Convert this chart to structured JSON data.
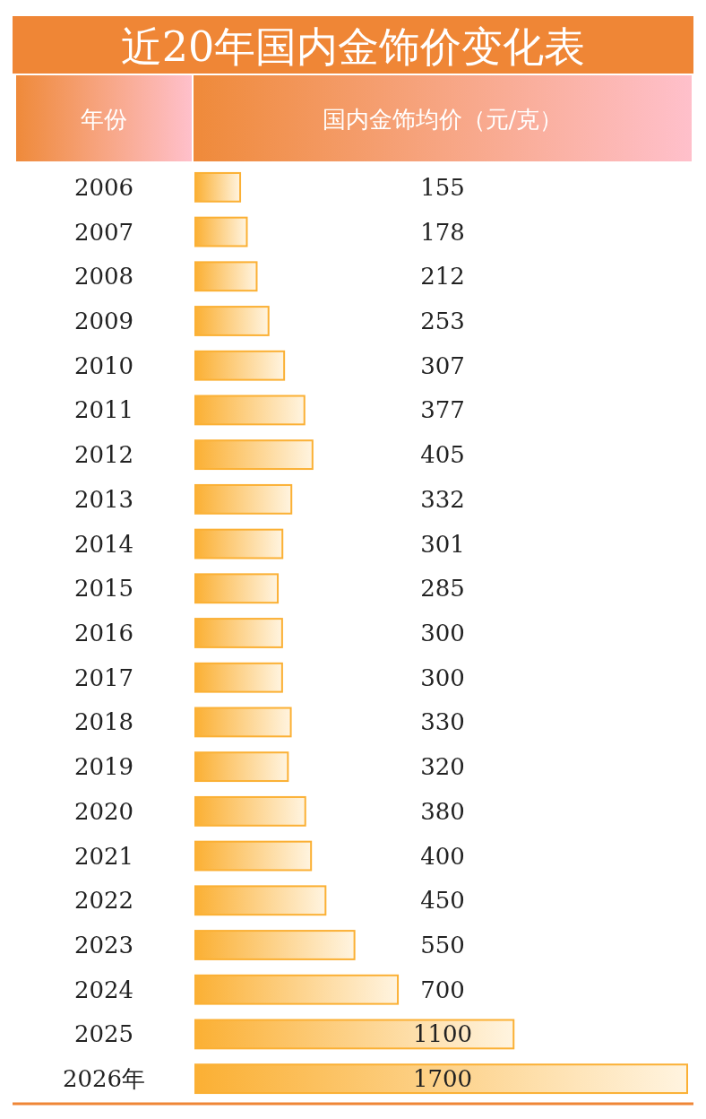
{
  "chart_data": {
    "type": "bar",
    "orientation": "horizontal",
    "title": "近20年国内金饰价变化表",
    "ylabel": "年份",
    "xlabel": "国内金饰均价（元/克）",
    "categories": [
      "2006",
      "2007",
      "2008",
      "2009",
      "2010",
      "2011",
      "2012",
      "2013",
      "2014",
      "2015",
      "2016",
      "2017",
      "2018",
      "2019",
      "2020",
      "2021",
      "2022",
      "2023",
      "2024",
      "2025",
      "2026年"
    ],
    "values": [
      155,
      178,
      212,
      253,
      307,
      377,
      405,
      332,
      301,
      285,
      300,
      300,
      330,
      320,
      380,
      400,
      450,
      550,
      700,
      1100,
      1700
    ],
    "color": "#fbb034",
    "data_labels": true
  }
}
